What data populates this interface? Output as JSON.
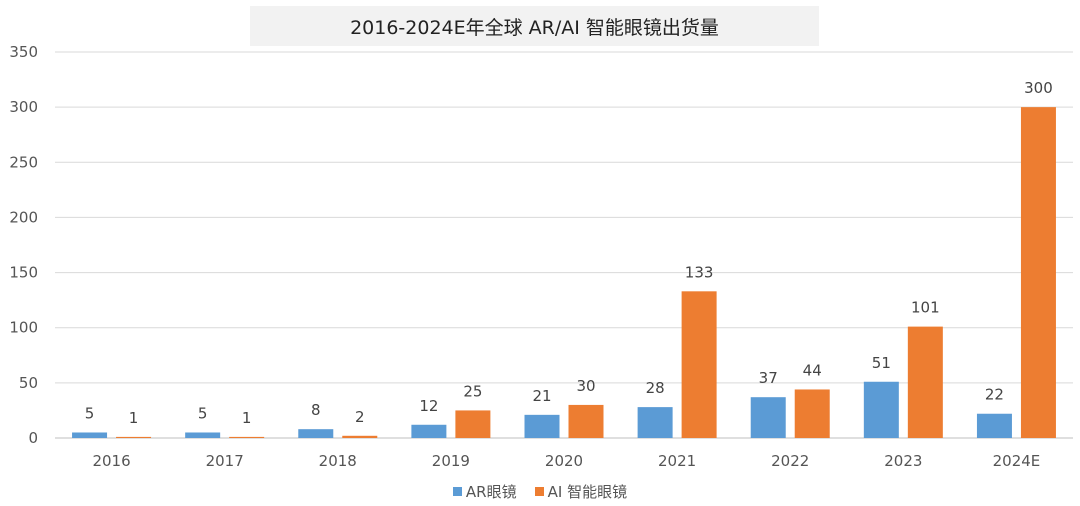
{
  "chart_data": {
    "type": "bar",
    "title": "2016-2024E年全球 AR/AI 智能眼镜出货量",
    "categories": [
      "2016",
      "2017",
      "2018",
      "2019",
      "2020",
      "2021",
      "2022",
      "2023",
      "2024E"
    ],
    "series": [
      {
        "name": "AR眼镜",
        "color": "#5b9bd5",
        "values": [
          5,
          5,
          8,
          12,
          21,
          28,
          37,
          51,
          22
        ]
      },
      {
        "name": "AI 智能眼镜",
        "color": "#ed7d31",
        "values": [
          1,
          1,
          2,
          25,
          30,
          133,
          44,
          101,
          300
        ]
      }
    ],
    "ylim": [
      0,
      350
    ],
    "yticks": [
      0,
      50,
      100,
      150,
      200,
      250,
      300,
      350
    ],
    "grid": true,
    "legend": "bottom",
    "xlabel": "",
    "ylabel": ""
  }
}
